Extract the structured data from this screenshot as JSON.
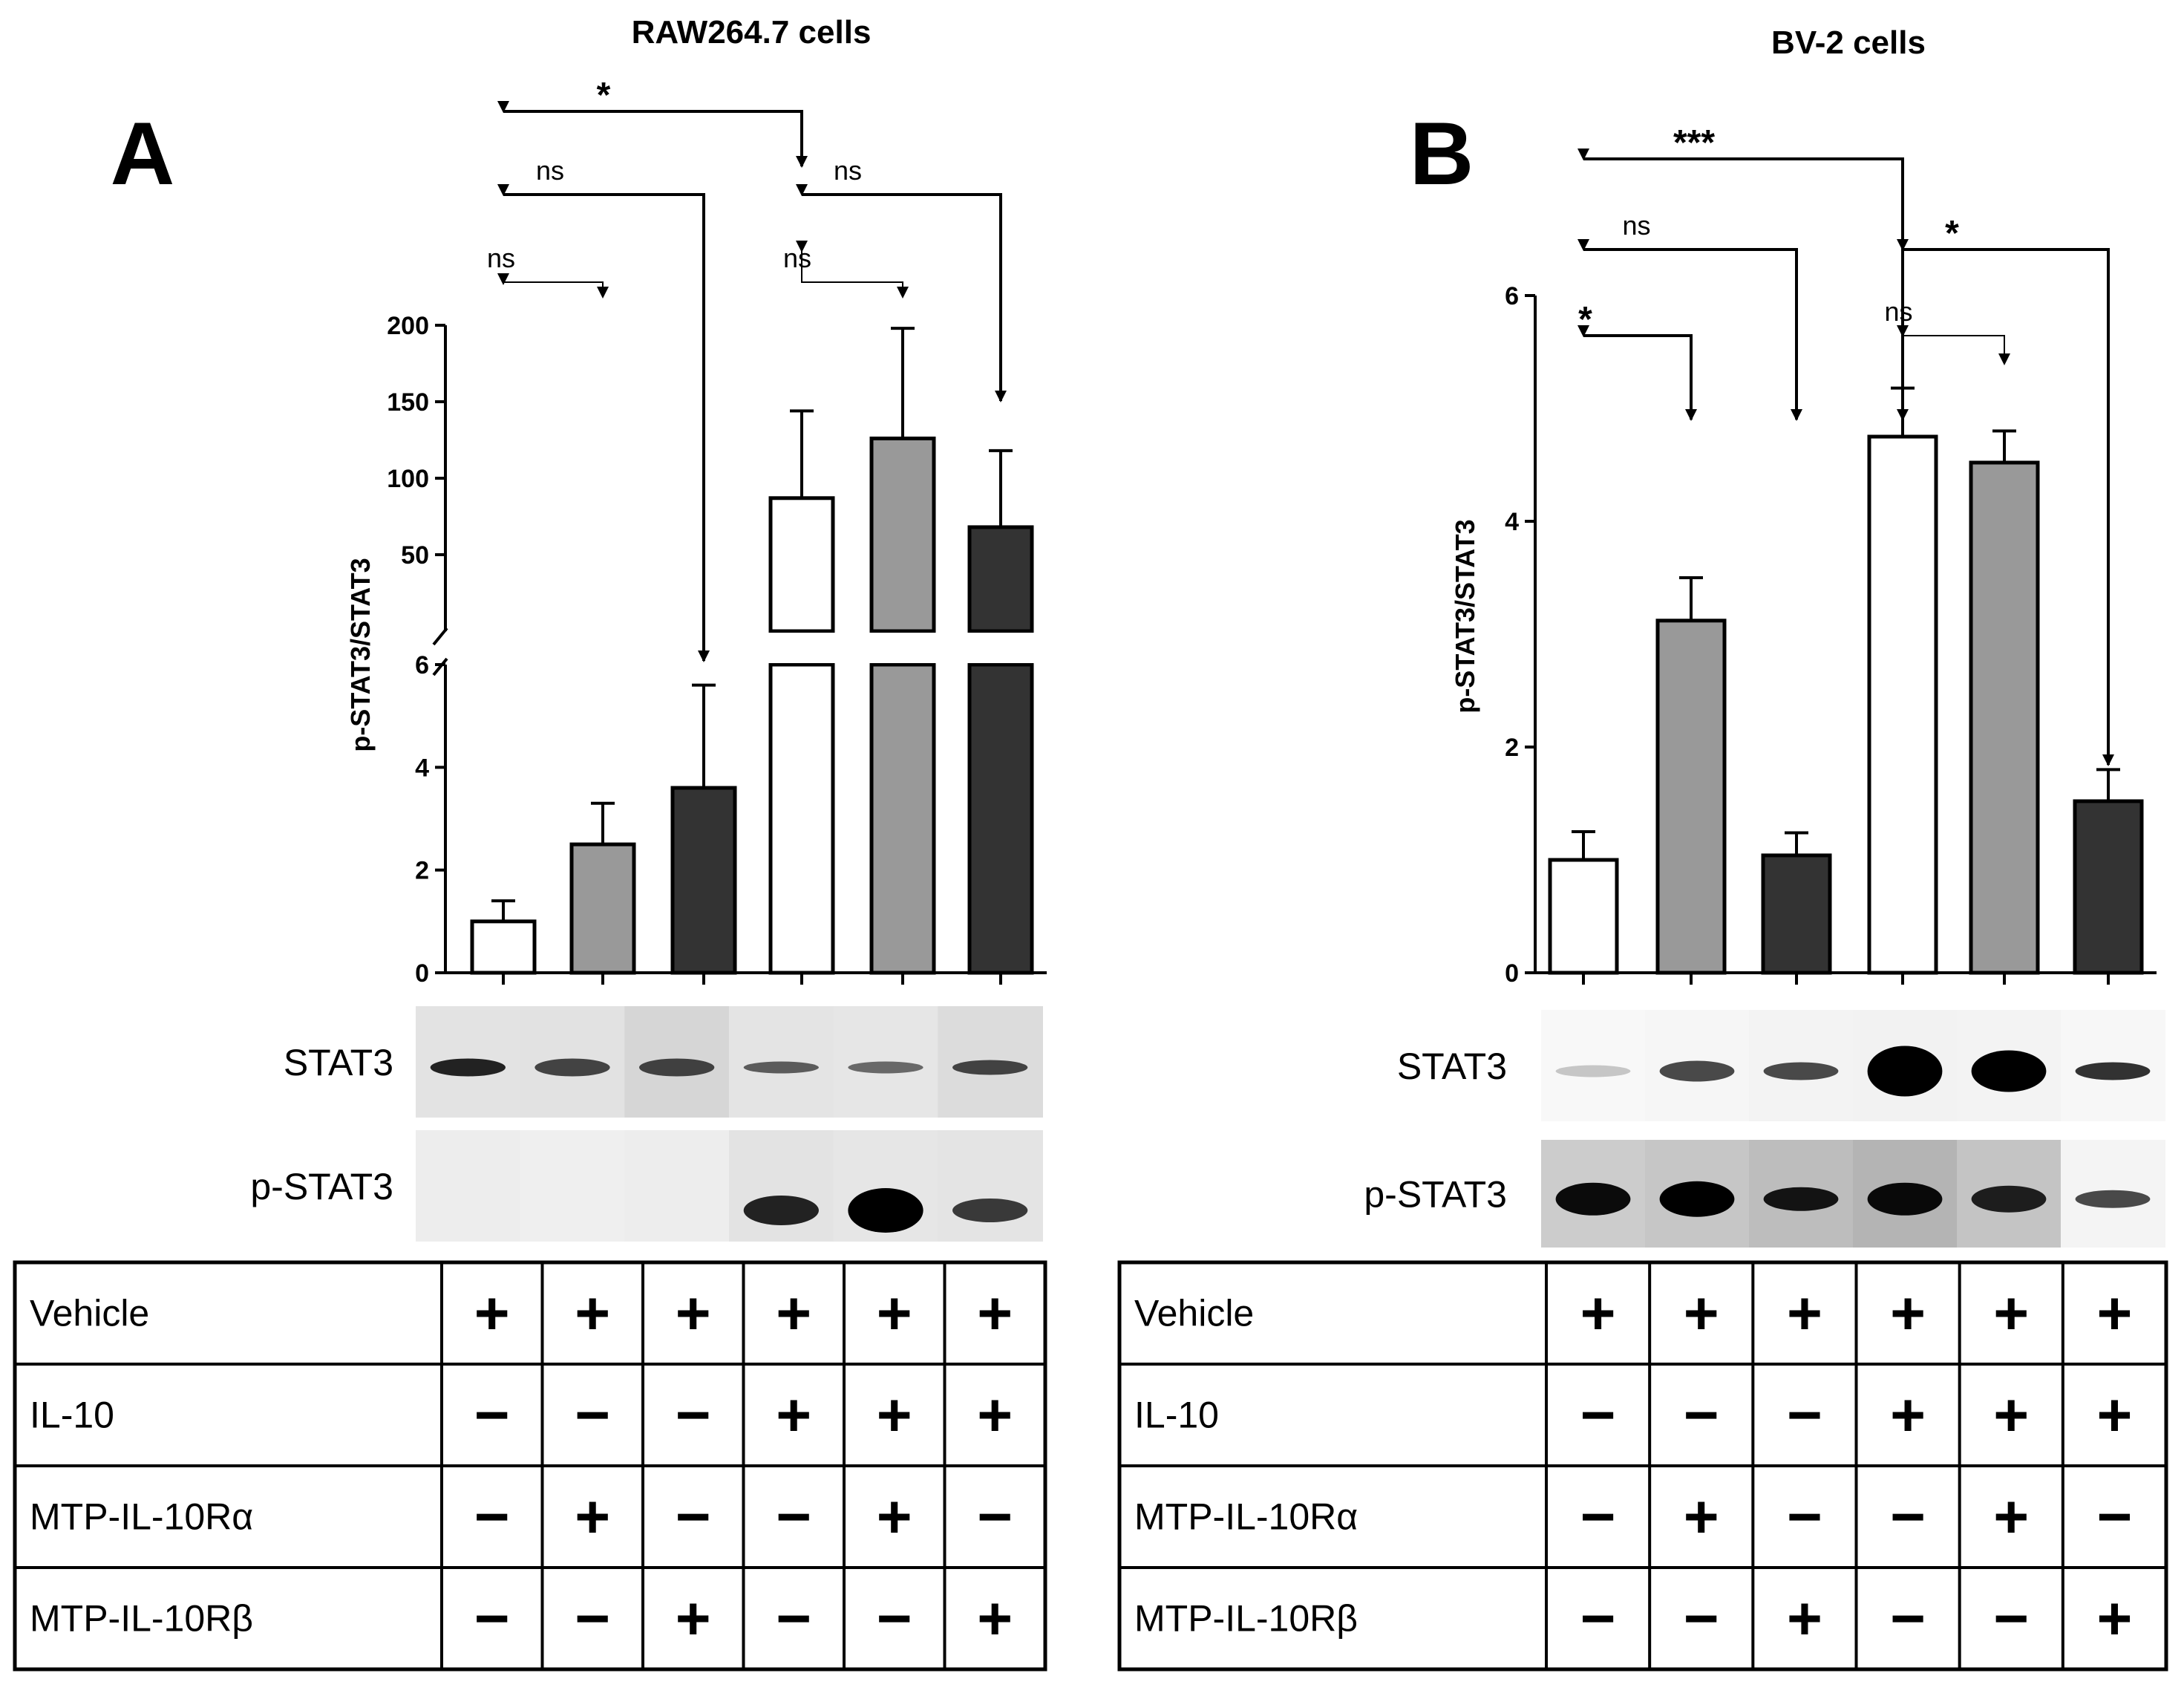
{
  "chart_data": [
    {
      "type": "bar",
      "panel": "A",
      "title": "RAW264.7 cells",
      "ylabel": "p-STAT3/STAT3",
      "broken_axis": {
        "lower": {
          "range": [
            0,
            6
          ],
          "ticks": [
            "0",
            "2",
            "4",
            "6"
          ]
        },
        "upper": {
          "range": [
            0,
            200
          ],
          "ticks": [
            "50",
            "100",
            "150",
            "200"
          ]
        }
      },
      "bars": [
        {
          "value": 1.0,
          "error": 0.4,
          "fill": "#ffffff"
        },
        {
          "value": 2.5,
          "error": 0.8,
          "fill": "#999999"
        },
        {
          "value": 3.6,
          "error": 2.0,
          "fill": "#333333"
        },
        {
          "value": 87,
          "error": 57,
          "fill": "#ffffff"
        },
        {
          "value": 126,
          "error": 72,
          "fill": "#999999"
        },
        {
          "value": 68,
          "error": 50,
          "fill": "#333333"
        }
      ],
      "significance": [
        {
          "from": 0,
          "to": 1,
          "label": "ns"
        },
        {
          "from": 0,
          "to": 2,
          "label": "ns"
        },
        {
          "from": 0,
          "to": 3,
          "label": "*"
        },
        {
          "from": 3,
          "to": 4,
          "label": "ns"
        },
        {
          "from": 3,
          "to": 5,
          "label": "ns"
        }
      ],
      "blots": [
        "STAT3",
        "p-STAT3"
      ],
      "table": {
        "rows": [
          {
            "label": "Vehicle",
            "values": [
              "+",
              "+",
              "+",
              "+",
              "+",
              "+"
            ]
          },
          {
            "label": "IL-10",
            "values": [
              "−",
              "−",
              "−",
              "+",
              "+",
              "+"
            ]
          },
          {
            "label": "MTP-IL-10Rα",
            "values": [
              "−",
              "+",
              "−",
              "−",
              "+",
              "−"
            ]
          },
          {
            "label": "MTP-IL-10Rβ",
            "values": [
              "−",
              "−",
              "+",
              "−",
              "−",
              "+"
            ]
          }
        ]
      }
    },
    {
      "type": "bar",
      "panel": "B",
      "title": "BV-2 cells",
      "ylabel": "p-STAT3/STAT3",
      "ylim": [
        0,
        6
      ],
      "yticks": [
        "0",
        "2",
        "4",
        "6"
      ],
      "bars": [
        {
          "value": 1.0,
          "error": 0.25,
          "fill": "#ffffff"
        },
        {
          "value": 3.12,
          "error": 0.38,
          "fill": "#999999"
        },
        {
          "value": 1.04,
          "error": 0.2,
          "fill": "#333333"
        },
        {
          "value": 4.75,
          "error": 0.43,
          "fill": "#ffffff"
        },
        {
          "value": 4.52,
          "error": 0.28,
          "fill": "#999999"
        },
        {
          "value": 1.52,
          "error": 0.28,
          "fill": "#333333"
        }
      ],
      "significance": [
        {
          "from": 0,
          "to": 1,
          "label": "*"
        },
        {
          "from": 0,
          "to": 2,
          "label": "ns"
        },
        {
          "from": 0,
          "to": 3,
          "label": "***"
        },
        {
          "from": 3,
          "to": 4,
          "label": "ns"
        },
        {
          "from": 3,
          "to": 5,
          "label": "*"
        }
      ],
      "blots": [
        "STAT3",
        "p-STAT3"
      ],
      "table": {
        "rows": [
          {
            "label": "Vehicle",
            "values": [
              "+",
              "+",
              "+",
              "+",
              "+",
              "+"
            ]
          },
          {
            "label": "IL-10",
            "values": [
              "−",
              "−",
              "−",
              "+",
              "+",
              "+"
            ]
          },
          {
            "label": "MTP-IL-10Rα",
            "values": [
              "−",
              "+",
              "−",
              "−",
              "+",
              "−"
            ]
          },
          {
            "label": "MTP-IL-10Rβ",
            "values": [
              "−",
              "−",
              "+",
              "−",
              "−",
              "+"
            ]
          }
        ]
      }
    }
  ]
}
